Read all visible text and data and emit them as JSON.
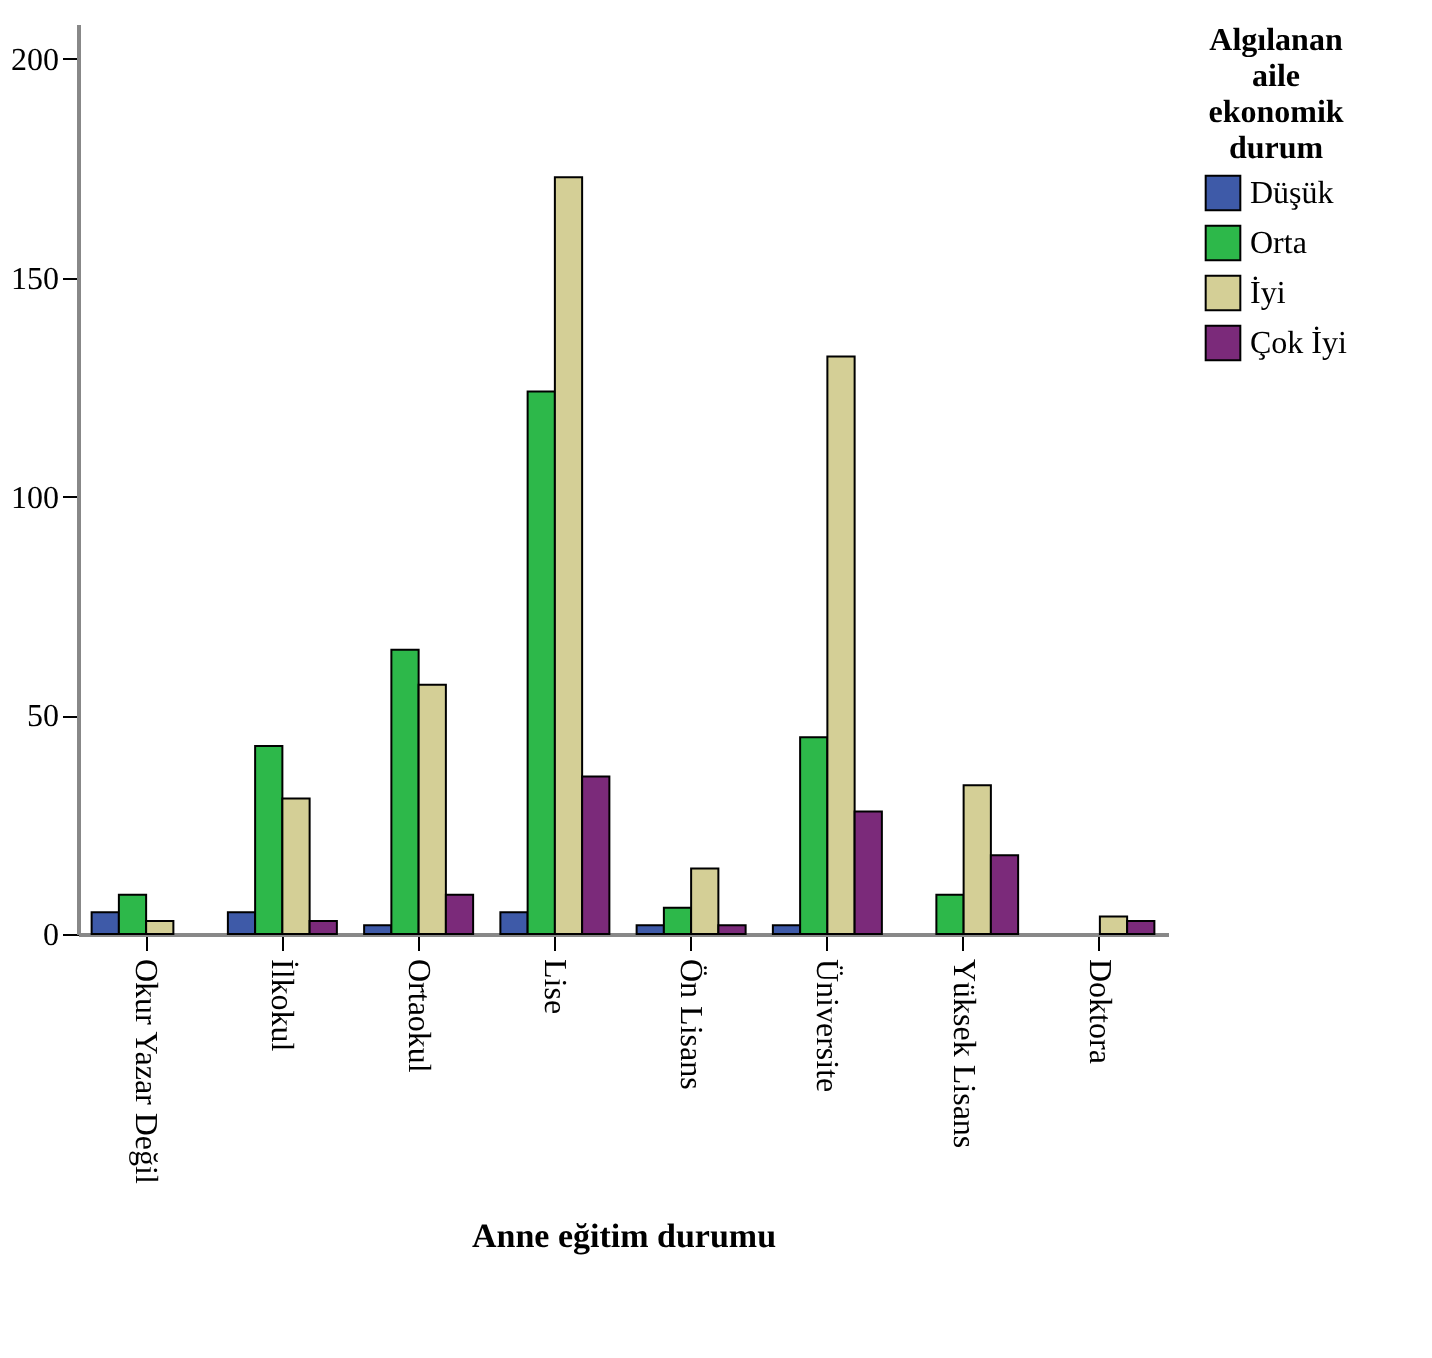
{
  "chart_data": {
    "type": "bar",
    "xlabel": "Anne eğitim durumu",
    "legend_title": "Algılanan aile ekonomik durum",
    "legend": "top right",
    "grid": false,
    "categories": [
      "Okur Yazar Değil",
      "İlkokul",
      "Ortaokul",
      "Lise",
      "Ön Lisans",
      "Üniversite",
      "Yüksek Lisans",
      "Doktora"
    ],
    "series": [
      {
        "name": "Düşük",
        "color": "#3e5aa8",
        "values": [
          5,
          5,
          2,
          5,
          2,
          2,
          null,
          null
        ]
      },
      {
        "name": "Orta",
        "color": "#2db84a",
        "values": [
          9,
          43,
          65,
          124,
          6,
          45,
          9,
          null
        ]
      },
      {
        "name": "İyi",
        "color": "#d4cf96",
        "values": [
          3,
          31,
          57,
          173,
          15,
          132,
          34,
          4
        ]
      },
      {
        "name": "Çok İyi",
        "color": "#7b2a7a",
        "values": [
          null,
          3,
          9,
          36,
          2,
          28,
          18,
          3
        ]
      }
    ],
    "ylim": [
      0,
      208
    ],
    "yticks": [
      0,
      50,
      100,
      150,
      200
    ]
  }
}
